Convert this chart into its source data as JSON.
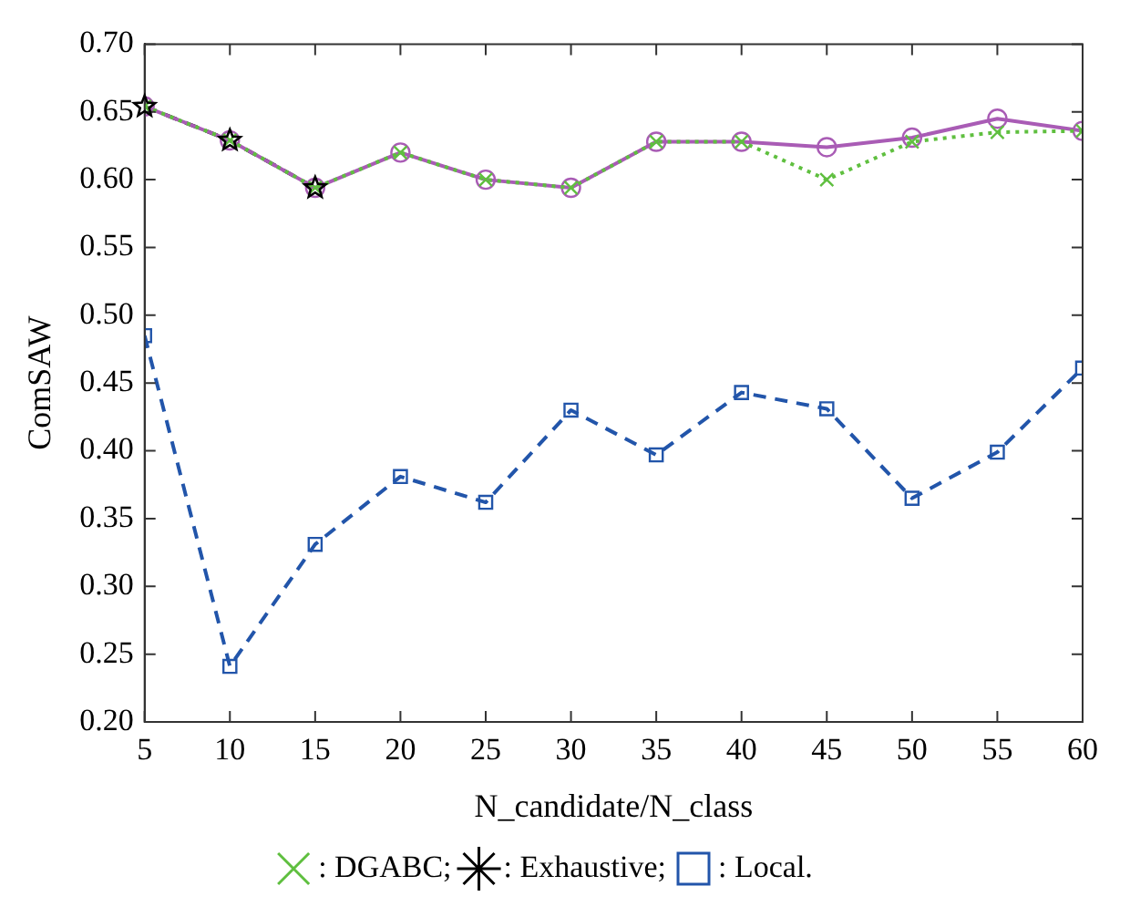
{
  "chart_data": {
    "type": "line",
    "xlabel": "N_candidate/N_class",
    "ylabel": "ComSAW",
    "x": [
      5,
      10,
      15,
      20,
      25,
      30,
      35,
      40,
      45,
      50,
      55,
      60
    ],
    "xlim": [
      5,
      60
    ],
    "xticks": [
      5,
      10,
      15,
      20,
      25,
      30,
      35,
      40,
      45,
      50,
      55,
      60
    ],
    "ylim": [
      0.2,
      0.7
    ],
    "yticks": [
      {
        "value": 0.2,
        "label": "0.20"
      },
      {
        "value": 0.25,
        "label": "0.25"
      },
      {
        "value": 0.3,
        "label": "0.30"
      },
      {
        "value": 0.35,
        "label": "0.35"
      },
      {
        "value": 0.4,
        "label": "0.40"
      },
      {
        "value": 0.45,
        "label": "0.45"
      },
      {
        "value": 0.5,
        "label": "0.50"
      },
      {
        "value": 0.55,
        "label": "0.55"
      },
      {
        "value": 0.6,
        "label": "0.60"
      },
      {
        "value": 0.65,
        "label": "0.65"
      },
      {
        "value": 0.7,
        "label": "0.70"
      }
    ],
    "grid": false,
    "legend": "bottom",
    "series": [
      {
        "name": ": DGABC;",
        "color": "#5fbf3f",
        "marker": "cross",
        "line_style": "dotted",
        "values": [
          0.654,
          0.629,
          0.594,
          0.62,
          0.6,
          0.594,
          0.628,
          0.628,
          0.6,
          0.628,
          0.635,
          0.636
        ]
      },
      {
        "color": "#a95cb5",
        "marker": "circle",
        "line_style": "solid",
        "values": [
          0.654,
          0.629,
          0.594,
          0.62,
          0.6,
          0.594,
          0.628,
          0.628,
          0.624,
          0.631,
          0.645,
          0.636
        ]
      },
      {
        "name": ": Exhaustive;",
        "color": "#000000",
        "marker": "star",
        "line_style": "dashed",
        "values": [
          0.654,
          0.629,
          0.594,
          null,
          null,
          null,
          null,
          null,
          null,
          null,
          null,
          null
        ]
      },
      {
        "name": ": Local.",
        "color": "#2255aa",
        "marker": "square",
        "line_style": "dashed",
        "values": [
          0.485,
          0.241,
          0.331,
          0.381,
          0.362,
          0.43,
          0.397,
          0.443,
          0.431,
          0.365,
          0.399,
          0.461
        ]
      }
    ]
  }
}
